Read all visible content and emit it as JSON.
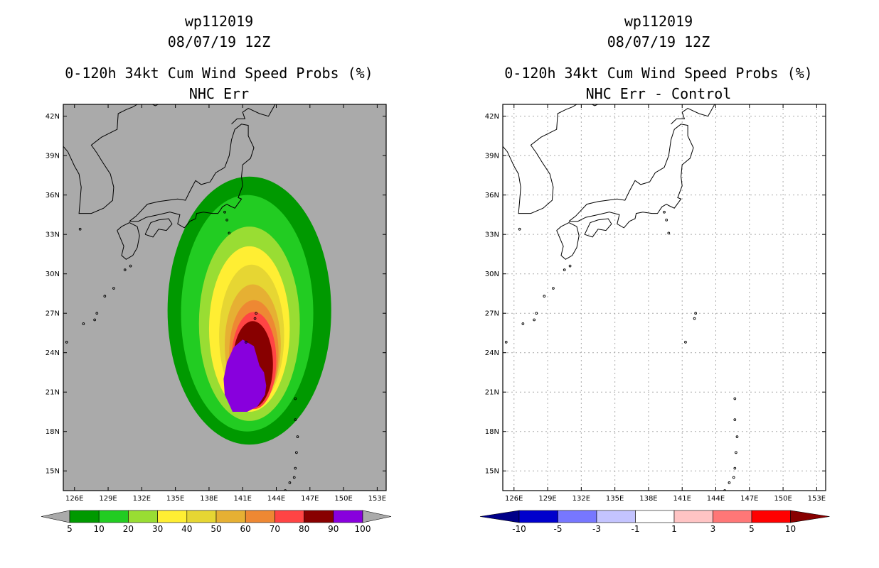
{
  "panels": [
    {
      "title_storm": "wp112019",
      "title_time": "08/07/19 12Z",
      "title_product": "0-120h 34kt Cum Wind Speed Probs (%)",
      "title_sub": "NHC Err"
    },
    {
      "title_storm": "wp112019",
      "title_time": "08/07/19 12Z",
      "title_product": "0-120h 34kt Cum Wind Speed Probs (%)",
      "title_sub": "NHC Err - Control"
    }
  ],
  "chart_data": [
    {
      "type": "heatmap",
      "title": "0-120h 34kt Cum Wind Speed Probs (%) - NHC Err",
      "x_ticks": [
        "126E",
        "129E",
        "132E",
        "135E",
        "138E",
        "141E",
        "144E",
        "147E",
        "150E",
        "153E"
      ],
      "y_ticks": [
        "15N",
        "18N",
        "21N",
        "24N",
        "27N",
        "30N",
        "33N",
        "36N",
        "39N",
        "42N"
      ],
      "xlim": [
        125,
        153.8
      ],
      "ylim": [
        13.5,
        42.9
      ],
      "land_color": "#aaaaaa",
      "contours": [
        {
          "level": 5,
          "color": "#009900",
          "center": [
            141.6,
            27.2
          ],
          "rx": 7.3,
          "ry": 10.2
        },
        {
          "level": 10,
          "color": "#22cc22",
          "center": [
            141.4,
            27.0
          ],
          "rx": 5.9,
          "ry": 9.0
        },
        {
          "level": 20,
          "color": "#99dd33",
          "center": [
            141.6,
            26.2
          ],
          "rx": 4.5,
          "ry": 7.4
        },
        {
          "level": 30,
          "color": "#ffee33",
          "center": [
            141.6,
            25.8
          ],
          "rx": 3.6,
          "ry": 6.3
        },
        {
          "level": 40,
          "color": "#e6d633",
          "center": [
            141.8,
            25.3
          ],
          "rx": 2.9,
          "ry": 5.4
        },
        {
          "level": 50,
          "color": "#e6b033",
          "center": [
            141.9,
            24.6
          ],
          "rx": 2.5,
          "ry": 4.6
        },
        {
          "level": 60,
          "color": "#ee8833",
          "center": [
            142.0,
            24.0
          ],
          "rx": 2.2,
          "ry": 4.0
        },
        {
          "level": 70,
          "color": "#ff4444",
          "center": [
            142.0,
            23.4
          ],
          "rx": 2.0,
          "ry": 3.7
        },
        {
          "level": 80,
          "color": "#880000",
          "center": [
            141.9,
            23.1
          ],
          "rx": 1.8,
          "ry": 3.3
        }
      ],
      "core_100_polygon": [
        [
          141.0,
          25.0
        ],
        [
          142.0,
          24.5
        ],
        [
          142.5,
          23.0
        ],
        [
          142.9,
          22.5
        ],
        [
          143.1,
          21.5
        ],
        [
          143.0,
          20.8
        ],
        [
          142.3,
          19.9
        ],
        [
          141.4,
          19.5
        ],
        [
          140.1,
          19.5
        ],
        [
          139.4,
          20.8
        ],
        [
          139.3,
          22.0
        ],
        [
          139.6,
          23.3
        ],
        [
          140.2,
          24.4
        ]
      ],
      "core_100_color": "#8800dd",
      "colorbar": {
        "labels": [
          "5",
          "10",
          "20",
          "30",
          "40",
          "50",
          "60",
          "70",
          "80",
          "90",
          "100"
        ],
        "colors": [
          "#009900",
          "#22cc22",
          "#99dd33",
          "#ffee33",
          "#e6d633",
          "#e6b033",
          "#ee8833",
          "#ff4444",
          "#880000",
          "#8800dd"
        ],
        "low_color": "#aaaaaa",
        "high_color": "#aaaaaa"
      }
    },
    {
      "type": "heatmap",
      "title": "0-120h 34kt Cum Wind Speed Probs (%) - NHC Err - Control",
      "x_ticks": [
        "126E",
        "129E",
        "132E",
        "135E",
        "138E",
        "141E",
        "144E",
        "147E",
        "150E",
        "153E"
      ],
      "y_ticks": [
        "15N",
        "18N",
        "21N",
        "24N",
        "27N",
        "30N",
        "33N",
        "36N",
        "39N",
        "42N"
      ],
      "xlim": [
        125,
        153.8
      ],
      "ylim": [
        13.5,
        42.9
      ],
      "grid": true,
      "colorbar": {
        "labels": [
          "-10",
          "-5",
          "-3",
          "-1",
          "1",
          "3",
          "5",
          "10"
        ],
        "colors": [
          "#0000cc",
          "#7777ff",
          "#c4c4ff",
          "#ffffff",
          "#ffc4c4",
          "#ff7777",
          "#ff0000"
        ],
        "low_color": "#000088",
        "high_color": "#880000"
      }
    }
  ]
}
